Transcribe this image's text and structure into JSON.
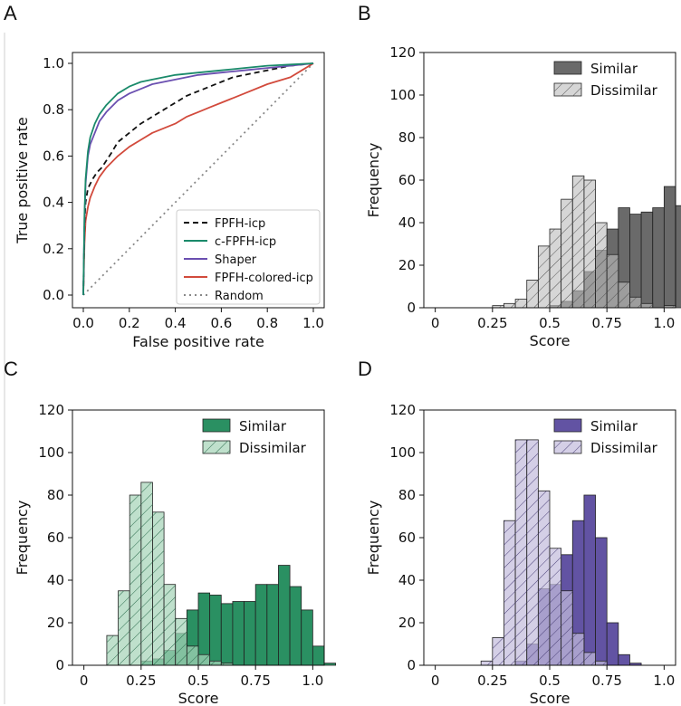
{
  "figure": {
    "background": "#ffffff"
  },
  "chart_data": [
    {
      "panel": "A",
      "type": "line",
      "xlabel": "False positive rate",
      "ylabel": "True positive rate",
      "xlim": [
        0,
        1
      ],
      "ylim": [
        0,
        1
      ],
      "xticks": [
        "0.0",
        "0.2",
        "0.4",
        "0.6",
        "0.8",
        "1.0"
      ],
      "yticks": [
        "0.0",
        "0.2",
        "0.4",
        "0.6",
        "0.8",
        "1.0"
      ],
      "legend_position": "lower-right",
      "series": [
        {
          "name": "FPFH-icp",
          "color": "#111111",
          "dash": "6,4",
          "x": [
            0,
            0.005,
            0.01,
            0.02,
            0.04,
            0.06,
            0.08,
            0.1,
            0.12,
            0.15,
            0.2,
            0.25,
            0.3,
            0.35,
            0.4,
            0.45,
            0.5,
            0.55,
            0.6,
            0.65,
            0.7,
            0.8,
            0.9,
            1.0
          ],
          "y": [
            0,
            0.3,
            0.4,
            0.46,
            0.5,
            0.53,
            0.55,
            0.58,
            0.61,
            0.66,
            0.7,
            0.74,
            0.77,
            0.8,
            0.83,
            0.86,
            0.88,
            0.9,
            0.92,
            0.94,
            0.95,
            0.97,
            0.99,
            1.0
          ]
        },
        {
          "name": "c-FPFH-icp",
          "color": "#1a8a6a",
          "dash": "",
          "x": [
            0,
            0.005,
            0.01,
            0.02,
            0.03,
            0.05,
            0.07,
            0.1,
            0.13,
            0.15,
            0.2,
            0.25,
            0.3,
            0.4,
            0.5,
            0.6,
            0.7,
            0.8,
            0.9,
            1.0
          ],
          "y": [
            0,
            0.35,
            0.5,
            0.62,
            0.68,
            0.74,
            0.78,
            0.82,
            0.85,
            0.87,
            0.9,
            0.92,
            0.93,
            0.95,
            0.96,
            0.97,
            0.98,
            0.99,
            0.995,
            1.0
          ]
        },
        {
          "name": "Shaper",
          "color": "#6a4fb0",
          "dash": "",
          "x": [
            0,
            0.005,
            0.01,
            0.02,
            0.03,
            0.05,
            0.07,
            0.1,
            0.13,
            0.15,
            0.2,
            0.25,
            0.3,
            0.4,
            0.5,
            0.6,
            0.7,
            0.8,
            0.9,
            1.0
          ],
          "y": [
            0,
            0.33,
            0.48,
            0.6,
            0.65,
            0.7,
            0.75,
            0.79,
            0.82,
            0.84,
            0.87,
            0.89,
            0.91,
            0.93,
            0.95,
            0.96,
            0.97,
            0.98,
            0.99,
            1.0
          ]
        },
        {
          "name": "FPFH-colored-icp",
          "color": "#d24a3c",
          "dash": "",
          "x": [
            0,
            0.005,
            0.01,
            0.02,
            0.03,
            0.05,
            0.07,
            0.1,
            0.15,
            0.2,
            0.25,
            0.3,
            0.35,
            0.4,
            0.45,
            0.5,
            0.55,
            0.6,
            0.65,
            0.7,
            0.8,
            0.9,
            0.95,
            1.0
          ],
          "y": [
            0,
            0.22,
            0.32,
            0.38,
            0.42,
            0.47,
            0.51,
            0.55,
            0.6,
            0.64,
            0.67,
            0.7,
            0.72,
            0.74,
            0.77,
            0.79,
            0.81,
            0.83,
            0.85,
            0.87,
            0.91,
            0.94,
            0.97,
            1.0
          ]
        },
        {
          "name": "Random",
          "color": "#888888",
          "dash": "2,4",
          "x": [
            0,
            1
          ],
          "y": [
            0,
            1
          ]
        }
      ]
    },
    {
      "panel": "B",
      "type": "histogram",
      "xlabel": "Score",
      "ylabel": "Frequency",
      "xlim": [
        -0.05,
        1.05
      ],
      "ylim": [
        0,
        120
      ],
      "xtick_values": [
        0,
        0.25,
        0.5,
        0.75,
        1.0
      ],
      "xticks": [
        "0",
        "0.25",
        "0.5",
        "0.75",
        "1.0"
      ],
      "ytick_values": [
        0,
        20,
        40,
        60,
        80,
        100,
        120
      ],
      "yticks": [
        "0",
        "20",
        "40",
        "60",
        "80",
        "100",
        "120"
      ],
      "bin_start": 0,
      "bin_width": 0.05,
      "legend_position": "top-right",
      "series": [
        {
          "name": "Similar",
          "color": "#555555",
          "alpha": 0.88,
          "hatch": false,
          "values": [
            0,
            0,
            0,
            0,
            0,
            0,
            0,
            0,
            0,
            0,
            1,
            3,
            8,
            17,
            27,
            37,
            47,
            44,
            45,
            47,
            57,
            48
          ]
        },
        {
          "name": "Dissimilar",
          "color": "#bdbdbd",
          "alpha": 0.62,
          "hatch": true,
          "values": [
            0,
            0,
            0,
            0,
            0,
            1,
            2,
            4,
            13,
            29,
            37,
            51,
            62,
            60,
            40,
            25,
            12,
            5,
            2,
            0,
            1,
            0
          ]
        }
      ]
    },
    {
      "panel": "C",
      "type": "histogram",
      "xlabel": "Score",
      "ylabel": "Frequency",
      "xlim": [
        -0.05,
        1.05
      ],
      "ylim": [
        0,
        120
      ],
      "xtick_values": [
        0,
        0.25,
        0.5,
        0.75,
        1.0
      ],
      "xticks": [
        "0",
        "0.25",
        "0.5",
        "0.75",
        "1.0"
      ],
      "ytick_values": [
        0,
        20,
        40,
        60,
        80,
        100,
        120
      ],
      "yticks": [
        "0",
        "20",
        "40",
        "60",
        "80",
        "100",
        "120"
      ],
      "bin_start": 0,
      "bin_width": 0.05,
      "legend_position": "top-right",
      "series": [
        {
          "name": "Similar",
          "color": "#1f8a5a",
          "alpha": 0.95,
          "hatch": false,
          "values": [
            0,
            0,
            0,
            0,
            0,
            2,
            3,
            7,
            15,
            26,
            34,
            33,
            29,
            30,
            30,
            38,
            38,
            47,
            37,
            26,
            9,
            1
          ]
        },
        {
          "name": "Dissimilar",
          "color": "#a6d4b8",
          "alpha": 0.72,
          "hatch": true,
          "values": [
            0,
            0,
            14,
            35,
            80,
            86,
            72,
            38,
            22,
            9,
            5,
            2,
            1,
            0,
            0,
            0,
            0,
            0,
            0,
            0,
            0,
            0
          ]
        }
      ]
    },
    {
      "panel": "D",
      "type": "histogram",
      "xlabel": "Score",
      "ylabel": "Frequency",
      "xlim": [
        -0.05,
        1.05
      ],
      "ylim": [
        0,
        120
      ],
      "xtick_values": [
        0,
        0.25,
        0.5,
        0.75,
        1.0
      ],
      "xticks": [
        "0",
        "0.25",
        "0.5",
        "0.75",
        "1.0"
      ],
      "ytick_values": [
        0,
        20,
        40,
        60,
        80,
        100,
        120
      ],
      "yticks": [
        "0",
        "20",
        "40",
        "60",
        "80",
        "100",
        "120"
      ],
      "bin_start": 0,
      "bin_width": 0.05,
      "legend_position": "top-right",
      "series": [
        {
          "name": "Similar",
          "color": "#5a4a9e",
          "alpha": 0.95,
          "hatch": false,
          "values": [
            0,
            0,
            0,
            0,
            0,
            0,
            0,
            2,
            10,
            36,
            38,
            52,
            68,
            80,
            60,
            20,
            5,
            1,
            0,
            0,
            0,
            0
          ]
        },
        {
          "name": "Dissimilar",
          "color": "#c3bcdc",
          "alpha": 0.72,
          "hatch": true,
          "values": [
            0,
            0,
            0,
            0,
            2,
            13,
            68,
            106,
            106,
            82,
            55,
            35,
            15,
            6,
            2,
            0,
            0,
            0,
            0,
            0,
            0,
            0
          ]
        }
      ]
    }
  ]
}
